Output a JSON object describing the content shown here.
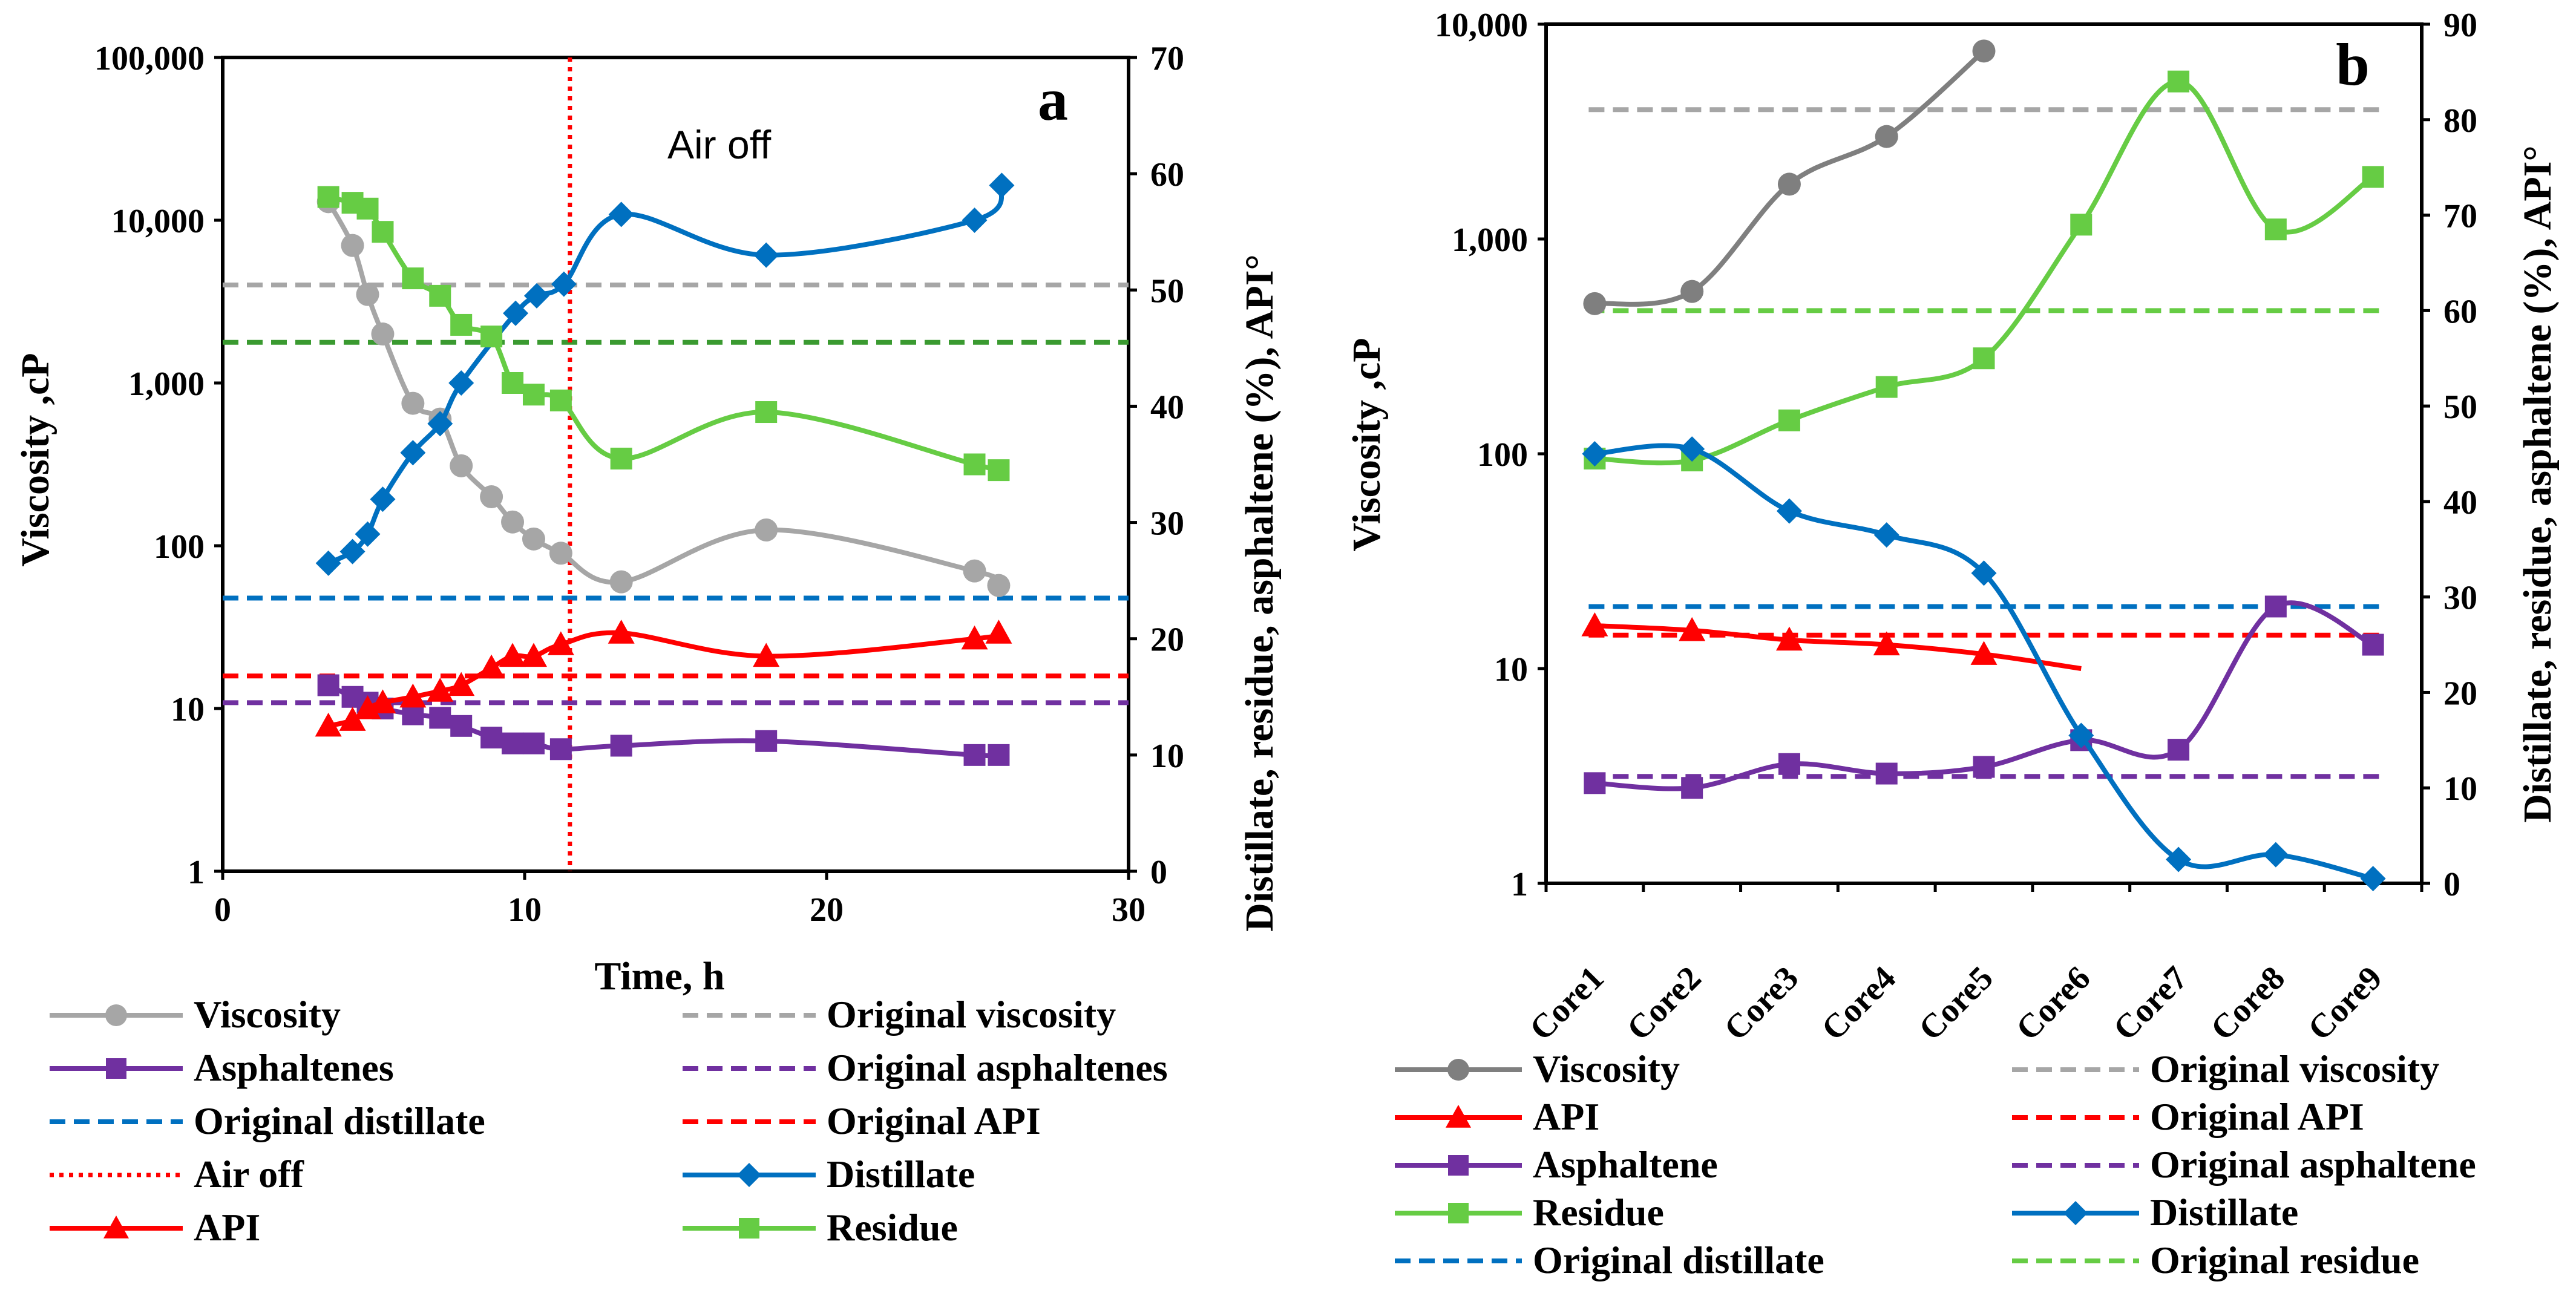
{
  "chart_data": [
    {
      "type": "line",
      "panel_label": "a",
      "xlabel": "Time, h",
      "ylabel_left": "Viscosity ,cP",
      "ylabel_right": "Distillate, residue, asphaltene (%), API°",
      "xlim": [
        0,
        30
      ],
      "xticks": [
        0,
        10,
        20,
        30
      ],
      "xtick_labels": [
        "0",
        "10",
        "20",
        "30"
      ],
      "ylim_left": [
        1,
        100000
      ],
      "yscale_left": "log",
      "yticks_left": [
        1,
        10,
        100,
        1000,
        10000,
        100000
      ],
      "ytick_labels_left": [
        "1",
        "10",
        "100",
        "1,000",
        "10,000",
        "100,000"
      ],
      "ylim_right": [
        0,
        70
      ],
      "yticks_right": [
        0,
        10,
        20,
        30,
        40,
        50,
        60,
        70
      ],
      "ytick_labels_right": [
        "0",
        "10",
        "20",
        "30",
        "40",
        "50",
        "60",
        "70"
      ],
      "annotation": "Air off",
      "air_off_x": 11.5,
      "series": [
        {
          "name": "Viscosity",
          "axis": "left",
          "marker": "circle",
          "color": "#a6a6a6",
          "x": [
            3.5,
            4.3,
            4.8,
            5.3,
            6.3,
            7.2,
            7.9,
            8.9,
            9.6,
            10.3,
            11.2,
            13.2,
            18,
            24.9,
            25.7
          ],
          "y": [
            13000,
            7000,
            3500,
            2000,
            750,
            600,
            310,
            200,
            140,
            110,
            90,
            60,
            125,
            70,
            57
          ]
        },
        {
          "name": "Asphaltenes",
          "axis": "right",
          "marker": "square",
          "color": "#7030a0",
          "x": [
            3.5,
            4.3,
            4.8,
            5.3,
            6.3,
            7.2,
            7.9,
            8.9,
            9.6,
            10.3,
            11.2,
            13.2,
            18,
            24.9,
            25.7
          ],
          "y": [
            16,
            15,
            14.5,
            14,
            13.5,
            13.2,
            12.5,
            11.5,
            11,
            11,
            10.5,
            10.8,
            11.2,
            10,
            10
          ]
        },
        {
          "name": "Distillate",
          "axis": "right",
          "marker": "diamond",
          "color": "#0070c0",
          "x": [
            3.5,
            4.3,
            4.8,
            5.3,
            6.3,
            7.2,
            7.9,
            9.7,
            10.4,
            11.3,
            13.2,
            18,
            24.9,
            25.8
          ],
          "y": [
            26.5,
            27.5,
            29,
            32,
            36,
            38.5,
            42,
            48,
            49.5,
            50.5,
            56.5,
            53,
            56,
            59
          ]
        },
        {
          "name": "Residue",
          "axis": "right",
          "marker": "square",
          "color": "#66cc44",
          "x": [
            3.5,
            4.3,
            4.8,
            5.3,
            6.3,
            7.2,
            7.9,
            8.9,
            9.6,
            10.3,
            11.2,
            13.2,
            18,
            24.9,
            25.7
          ],
          "y": [
            58,
            57.5,
            57,
            55,
            51,
            49.5,
            47,
            46,
            42,
            41,
            40.5,
            35.5,
            39.5,
            35,
            34.5
          ]
        },
        {
          "name": "API",
          "axis": "right",
          "marker": "triangle",
          "color": "#ff0000",
          "x": [
            3.5,
            4.3,
            4.8,
            5.3,
            6.3,
            7.2,
            7.9,
            8.9,
            9.6,
            10.3,
            11.2,
            13.2,
            18,
            24.9,
            25.7
          ],
          "y": [
            12.5,
            13,
            14,
            14.5,
            15,
            15.5,
            16,
            17.5,
            18.5,
            18.5,
            19.5,
            20.5,
            18.5,
            20,
            20.5
          ]
        }
      ],
      "reference_lines": [
        {
          "name": "Original viscosity",
          "axis": "left",
          "value": 4000,
          "color": "#a6a6a6",
          "style": "dashed"
        },
        {
          "name": "Original asphaltenes",
          "axis": "right",
          "value": 14.5,
          "color": "#7030a0",
          "style": "dashed"
        },
        {
          "name": "Original distillate",
          "axis": "right",
          "value": 23.5,
          "color": "#0070c0",
          "style": "dashed"
        },
        {
          "name": "Original API",
          "axis": "right",
          "value": 16.8,
          "color": "#ff0000",
          "style": "dashed"
        },
        {
          "name": "Original residue",
          "axis": "right",
          "value": 45.5,
          "color": "#3a9a30",
          "style": "dashed"
        },
        {
          "name": "Air off",
          "axis": "x",
          "value": 11.5,
          "color": "#ff0000",
          "style": "dotted"
        }
      ],
      "legend": {
        "placement": "bottom",
        "entries": [
          {
            "label": "Viscosity",
            "color": "#a6a6a6",
            "style": "solid",
            "marker": "circle"
          },
          {
            "label": "Original viscosity",
            "color": "#a6a6a6",
            "style": "dashed",
            "marker": "none"
          },
          {
            "label": "Asphaltenes",
            "color": "#7030a0",
            "style": "solid",
            "marker": "square"
          },
          {
            "label": "Original asphaltenes",
            "color": "#7030a0",
            "style": "dashed",
            "marker": "none"
          },
          {
            "label": "Original distillate",
            "color": "#0070c0",
            "style": "dashed",
            "marker": "none"
          },
          {
            "label": "Original API",
            "color": "#ff0000",
            "style": "dashed",
            "marker": "none"
          },
          {
            "label": "Air off",
            "color": "#ff0000",
            "style": "dotted",
            "marker": "none"
          },
          {
            "label": "Distillate",
            "color": "#0070c0",
            "style": "solid",
            "marker": "diamond"
          },
          {
            "label": "API",
            "color": "#ff0000",
            "style": "solid",
            "marker": "triangle"
          },
          {
            "label": "Residue",
            "color": "#66cc44",
            "style": "solid",
            "marker": "square"
          }
        ]
      }
    },
    {
      "type": "line",
      "panel_label": "b",
      "ylabel_left": "Viscosity ,cP",
      "ylabel_right": "Distillate,  residue, asphaltene (%), API°",
      "categories": [
        "Core1",
        "Core2",
        "Core3",
        "Core4",
        "Core5",
        "Core6",
        "Core7",
        "Core8",
        "Core9"
      ],
      "ylim_left": [
        1,
        10000
      ],
      "yscale_left": "log",
      "yticks_left": [
        1,
        10,
        100,
        1000,
        10000
      ],
      "ytick_labels_left": [
        "1",
        "10",
        "100",
        "1,000",
        "10,000"
      ],
      "ylim_right": [
        0,
        90
      ],
      "yticks_right": [
        0,
        10,
        20,
        30,
        40,
        50,
        60,
        70,
        80,
        90
      ],
      "ytick_labels_right": [
        "0",
        "10",
        "20",
        "30",
        "40",
        "50",
        "60",
        "70",
        "80",
        "90"
      ],
      "series": [
        {
          "name": "Viscosity",
          "axis": "left",
          "marker": "circle",
          "color": "#7f7f7f",
          "x": [
            1,
            2,
            3,
            4,
            5
          ],
          "y": [
            500,
            570,
            1800,
            3000,
            7500
          ]
        },
        {
          "name": "API",
          "axis": "right",
          "marker": "triangle",
          "color": "#ff0000",
          "x": [
            1,
            2,
            3,
            4,
            5,
            6
          ],
          "y": [
            27,
            26.5,
            25.5,
            25,
            24,
            22.5
          ]
        },
        {
          "name": "Asphaltene",
          "axis": "right",
          "marker": "square",
          "color": "#7030a0",
          "x": [
            1,
            2,
            3,
            4,
            5,
            6,
            7,
            8,
            9
          ],
          "y": [
            10.5,
            10,
            12.5,
            11.5,
            12.2,
            15,
            14,
            29,
            25
          ]
        },
        {
          "name": "Residue",
          "axis": "right",
          "marker": "square",
          "color": "#66cc44",
          "x": [
            1,
            2,
            3,
            4,
            5,
            6,
            7,
            8,
            9
          ],
          "y": [
            44.5,
            44.3,
            48.5,
            52,
            55,
            69,
            84,
            68.5,
            74
          ]
        },
        {
          "name": "Distillate",
          "axis": "right",
          "marker": "diamond",
          "color": "#0070c0",
          "x": [
            1,
            2,
            3,
            4,
            5,
            6,
            7,
            8,
            9
          ],
          "y": [
            45,
            45.5,
            39,
            36.5,
            32.5,
            15.5,
            2.5,
            3,
            0.5
          ]
        }
      ],
      "reference_lines": [
        {
          "name": "Original viscosity",
          "axis": "left",
          "value": 4000,
          "color": "#a6a6a6",
          "style": "dashed"
        },
        {
          "name": "Original residue",
          "axis": "right",
          "value": 60,
          "color": "#66cc44",
          "style": "dashed"
        },
        {
          "name": "Original distillate",
          "axis": "right",
          "value": 29,
          "color": "#0070c0",
          "style": "dashed"
        },
        {
          "name": "Original API",
          "axis": "right",
          "value": 26,
          "color": "#ff0000",
          "style": "dashed"
        },
        {
          "name": "Original asphaltene",
          "axis": "right",
          "value": 11.2,
          "color": "#7030a0",
          "style": "dashed"
        }
      ],
      "legend": {
        "placement": "bottom",
        "entries": [
          {
            "label": "Viscosity",
            "color": "#7f7f7f",
            "style": "solid",
            "marker": "circle"
          },
          {
            "label": "Original viscosity",
            "color": "#a6a6a6",
            "style": "dashed",
            "marker": "none"
          },
          {
            "label": "API",
            "color": "#ff0000",
            "style": "solid",
            "marker": "triangle"
          },
          {
            "label": "Original API",
            "color": "#ff0000",
            "style": "dashed",
            "marker": "none"
          },
          {
            "label": "Asphaltene",
            "color": "#7030a0",
            "style": "solid",
            "marker": "square"
          },
          {
            "label": "Original asphaltene",
            "color": "#7030a0",
            "style": "dashed",
            "marker": "none"
          },
          {
            "label": "Residue",
            "color": "#66cc44",
            "style": "solid",
            "marker": "square"
          },
          {
            "label": "Distillate",
            "color": "#0070c0",
            "style": "solid",
            "marker": "diamond"
          },
          {
            "label": "Original distillate",
            "color": "#0070c0",
            "style": "dashed",
            "marker": "none"
          },
          {
            "label": "Original residue",
            "color": "#66cc44",
            "style": "dashed",
            "marker": "none"
          }
        ]
      }
    }
  ]
}
